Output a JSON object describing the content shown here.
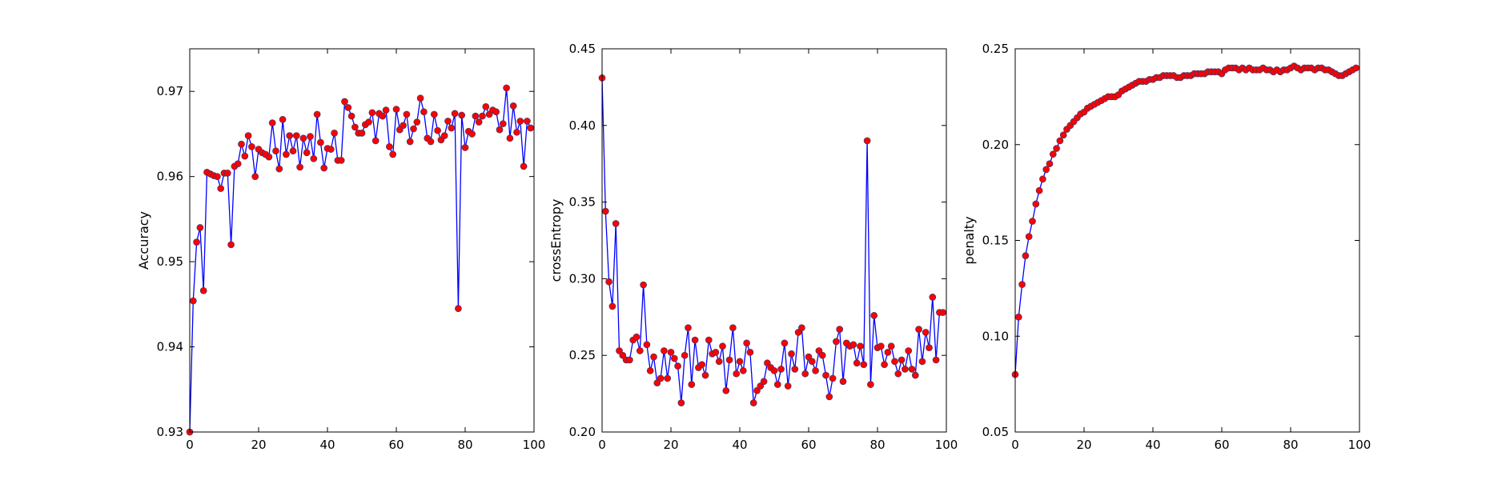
{
  "figure": {
    "background": "#ffffff"
  },
  "style": {
    "line_color": "#0000ff",
    "marker_fill": "#ff0000",
    "marker_edge": "#3a3a6a"
  },
  "chart_data": [
    {
      "type": "line",
      "xlabel": "",
      "ylabel": "Accuracy",
      "xlim": [
        0,
        100
      ],
      "ylim": [
        0.93,
        0.975
      ],
      "xticks": [
        0,
        20,
        40,
        60,
        80,
        100
      ],
      "xtick_labels": [
        "0",
        "20",
        "40",
        "60",
        "80",
        "100"
      ],
      "yticks": [
        0.93,
        0.94,
        0.95,
        0.96,
        0.97
      ],
      "ytick_labels": [
        "0.93",
        "0.94",
        "0.95",
        "0.96",
        "0.97"
      ],
      "grid": false,
      "series": [
        {
          "x": [
            0,
            1,
            2,
            3,
            4,
            5,
            6,
            7,
            8,
            9,
            10,
            11,
            12,
            13,
            14,
            15,
            16,
            17,
            18,
            19,
            20,
            21,
            22,
            23,
            24,
            25,
            26,
            27,
            28,
            29,
            30,
            31,
            32,
            33,
            34,
            35,
            36,
            37,
            38,
            39,
            40,
            41,
            42,
            43,
            44,
            45,
            46,
            47,
            48,
            49,
            50,
            51,
            52,
            53,
            54,
            55,
            56,
            57,
            58,
            59,
            60,
            61,
            62,
            63,
            64,
            65,
            66,
            67,
            68,
            69,
            70,
            71,
            72,
            73,
            74,
            75,
            76,
            77,
            78,
            79,
            80,
            81,
            82,
            83,
            84,
            85,
            86,
            87,
            88,
            89,
            90,
            91,
            92,
            93,
            94,
            95,
            96,
            97,
            98,
            99
          ],
          "values": [
            0.93,
            0.9454,
            0.9523,
            0.954,
            0.9466,
            0.9605,
            0.9603,
            0.9601,
            0.96,
            0.9586,
            0.9604,
            0.9604,
            0.952,
            0.9612,
            0.9615,
            0.9638,
            0.9624,
            0.9648,
            0.9635,
            0.96,
            0.9632,
            0.9628,
            0.9626,
            0.9623,
            0.9663,
            0.963,
            0.9609,
            0.9667,
            0.9626,
            0.9648,
            0.963,
            0.9648,
            0.9611,
            0.9645,
            0.9628,
            0.9647,
            0.9621,
            0.9673,
            0.964,
            0.961,
            0.9633,
            0.9632,
            0.9651,
            0.9619,
            0.9619,
            0.9688,
            0.9681,
            0.9671,
            0.9658,
            0.9651,
            0.9651,
            0.9661,
            0.9664,
            0.9675,
            0.9642,
            0.9674,
            0.9671,
            0.9678,
            0.9635,
            0.9626,
            0.9679,
            0.9655,
            0.966,
            0.9673,
            0.9641,
            0.9656,
            0.9664,
            0.9692,
            0.9676,
            0.9645,
            0.9641,
            0.9673,
            0.9654,
            0.9643,
            0.9648,
            0.9665,
            0.9657,
            0.9674,
            0.9445,
            0.9672,
            0.9634,
            0.9653,
            0.965,
            0.9671,
            0.9664,
            0.9671,
            0.9682,
            0.9673,
            0.9678,
            0.9676,
            0.9655,
            0.9662,
            0.9704,
            0.9645,
            0.9683,
            0.9652,
            0.9665,
            0.9612,
            0.9665,
            0.9657
          ]
        }
      ]
    },
    {
      "type": "line",
      "xlabel": "",
      "ylabel": "crossEntropy",
      "xlim": [
        0,
        100
      ],
      "ylim": [
        0.2,
        0.45
      ],
      "xticks": [
        0,
        20,
        40,
        60,
        80,
        100
      ],
      "xtick_labels": [
        "0",
        "20",
        "40",
        "60",
        "80",
        "100"
      ],
      "yticks": [
        0.2,
        0.25,
        0.3,
        0.35,
        0.4,
        0.45
      ],
      "ytick_labels": [
        "0.20",
        "0.25",
        "0.30",
        "0.35",
        "0.40",
        "0.45"
      ],
      "grid": false,
      "series": [
        {
          "x": [
            0,
            1,
            2,
            3,
            4,
            5,
            6,
            7,
            8,
            9,
            10,
            11,
            12,
            13,
            14,
            15,
            16,
            17,
            18,
            19,
            20,
            21,
            22,
            23,
            24,
            25,
            26,
            27,
            28,
            29,
            30,
            31,
            32,
            33,
            34,
            35,
            36,
            37,
            38,
            39,
            40,
            41,
            42,
            43,
            44,
            45,
            46,
            47,
            48,
            49,
            50,
            51,
            52,
            53,
            54,
            55,
            56,
            57,
            58,
            59,
            60,
            61,
            62,
            63,
            64,
            65,
            66,
            67,
            68,
            69,
            70,
            71,
            72,
            73,
            74,
            75,
            76,
            77,
            78,
            79,
            80,
            81,
            82,
            83,
            84,
            85,
            86,
            87,
            88,
            89,
            90,
            91,
            92,
            93,
            94,
            95,
            96,
            97,
            98,
            99
          ],
          "values": [
            0.431,
            0.344,
            0.298,
            0.282,
            0.336,
            0.253,
            0.25,
            0.247,
            0.247,
            0.26,
            0.262,
            0.253,
            0.296,
            0.257,
            0.24,
            0.249,
            0.232,
            0.235,
            0.253,
            0.235,
            0.252,
            0.248,
            0.243,
            0.219,
            0.25,
            0.268,
            0.231,
            0.26,
            0.242,
            0.244,
            0.237,
            0.26,
            0.251,
            0.252,
            0.246,
            0.256,
            0.227,
            0.247,
            0.268,
            0.238,
            0.246,
            0.24,
            0.258,
            0.252,
            0.219,
            0.227,
            0.23,
            0.233,
            0.245,
            0.242,
            0.24,
            0.231,
            0.241,
            0.258,
            0.23,
            0.251,
            0.241,
            0.265,
            0.268,
            0.238,
            0.249,
            0.246,
            0.24,
            0.253,
            0.25,
            0.237,
            0.223,
            0.235,
            0.259,
            0.267,
            0.233,
            0.258,
            0.256,
            0.257,
            0.245,
            0.256,
            0.244,
            0.39,
            0.231,
            0.276,
            0.255,
            0.256,
            0.244,
            0.252,
            0.256,
            0.246,
            0.238,
            0.247,
            0.241,
            0.253,
            0.241,
            0.237,
            0.267,
            0.246,
            0.265,
            0.255,
            0.288,
            0.247,
            0.278,
            0.278
          ]
        }
      ]
    },
    {
      "type": "line",
      "xlabel": "",
      "ylabel": "penalty",
      "xlim": [
        0,
        100
      ],
      "ylim": [
        0.05,
        0.25
      ],
      "xticks": [
        0,
        20,
        40,
        60,
        80,
        100
      ],
      "xtick_labels": [
        "0",
        "20",
        "40",
        "60",
        "80",
        "100"
      ],
      "yticks": [
        0.05,
        0.1,
        0.15,
        0.2,
        0.25
      ],
      "ytick_labels": [
        "0.05",
        "0.10",
        "0.15",
        "0.20",
        "0.25"
      ],
      "grid": false,
      "series": [
        {
          "x": [
            0,
            1,
            2,
            3,
            4,
            5,
            6,
            7,
            8,
            9,
            10,
            11,
            12,
            13,
            14,
            15,
            16,
            17,
            18,
            19,
            20,
            21,
            22,
            23,
            24,
            25,
            26,
            27,
            28,
            29,
            30,
            31,
            32,
            33,
            34,
            35,
            36,
            37,
            38,
            39,
            40,
            41,
            42,
            43,
            44,
            45,
            46,
            47,
            48,
            49,
            50,
            51,
            52,
            53,
            54,
            55,
            56,
            57,
            58,
            59,
            60,
            61,
            62,
            63,
            64,
            65,
            66,
            67,
            68,
            69,
            70,
            71,
            72,
            73,
            74,
            75,
            76,
            77,
            78,
            79,
            80,
            81,
            82,
            83,
            84,
            85,
            86,
            87,
            88,
            89,
            90,
            91,
            92,
            93,
            94,
            95,
            96,
            97,
            98,
            99
          ],
          "values": [
            0.08,
            0.11,
            0.127,
            0.142,
            0.152,
            0.16,
            0.169,
            0.176,
            0.182,
            0.187,
            0.19,
            0.195,
            0.198,
            0.202,
            0.205,
            0.208,
            0.21,
            0.212,
            0.214,
            0.216,
            0.217,
            0.219,
            0.22,
            0.221,
            0.222,
            0.223,
            0.224,
            0.225,
            0.225,
            0.225,
            0.226,
            0.228,
            0.229,
            0.23,
            0.231,
            0.232,
            0.233,
            0.233,
            0.233,
            0.234,
            0.234,
            0.235,
            0.235,
            0.236,
            0.236,
            0.236,
            0.236,
            0.235,
            0.235,
            0.236,
            0.236,
            0.236,
            0.237,
            0.237,
            0.237,
            0.237,
            0.238,
            0.238,
            0.238,
            0.238,
            0.237,
            0.239,
            0.24,
            0.24,
            0.24,
            0.239,
            0.24,
            0.239,
            0.24,
            0.239,
            0.239,
            0.239,
            0.24,
            0.239,
            0.239,
            0.238,
            0.239,
            0.238,
            0.239,
            0.239,
            0.24,
            0.241,
            0.24,
            0.239,
            0.24,
            0.24,
            0.24,
            0.239,
            0.24,
            0.24,
            0.239,
            0.239,
            0.238,
            0.237,
            0.236,
            0.236,
            0.237,
            0.238,
            0.239,
            0.24
          ]
        }
      ]
    }
  ]
}
